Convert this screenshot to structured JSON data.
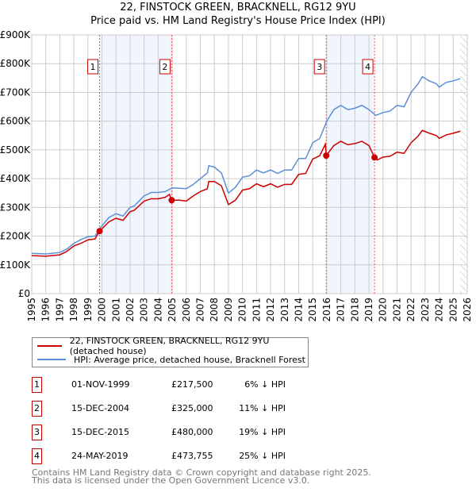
{
  "chart_data": {
    "type": "line",
    "title": "22, FINSTOCK GREEN, BRACKNELL, RG12 9YU",
    "subtitle": "Price paid vs. HM Land Registry's House Price Index (HPI)",
    "xlim": [
      1995,
      2026
    ],
    "ylim": [
      0,
      900000
    ],
    "y_ticks": [
      0,
      100000,
      200000,
      300000,
      400000,
      500000,
      600000,
      700000,
      800000,
      900000
    ],
    "y_tick_labels": [
      "£0",
      "£100K",
      "£200K",
      "£300K",
      "£400K",
      "£500K",
      "£600K",
      "£700K",
      "£800K",
      "£900K"
    ],
    "x_ticks": [
      1995,
      1996,
      1997,
      1998,
      1999,
      2000,
      2001,
      2002,
      2003,
      2004,
      2005,
      2006,
      2007,
      2008,
      2009,
      2010,
      2011,
      2012,
      2013,
      2014,
      2015,
      2016,
      2017,
      2018,
      2019,
      2020,
      2021,
      2022,
      2023,
      2024,
      2025,
      2026
    ],
    "grid": true,
    "legend_position": "below",
    "series": [
      {
        "name": "22, FINSTOCK GREEN, BRACKNELL, RG12 9YU (detached house)",
        "color": "#cc0000",
        "points": [
          [
            1995,
            132
          ],
          [
            1996,
            130
          ],
          [
            1997,
            135
          ],
          [
            1997.5,
            147
          ],
          [
            1998,
            166
          ],
          [
            1998.5,
            175
          ],
          [
            1999,
            187
          ],
          [
            1999.5,
            190
          ],
          [
            1999.83,
            217.5
          ],
          [
            2000.5,
            250
          ],
          [
            2001,
            262
          ],
          [
            2001.5,
            255
          ],
          [
            2002,
            285
          ],
          [
            2002.3,
            290
          ],
          [
            2003,
            322
          ],
          [
            2003.5,
            330
          ],
          [
            2004,
            330
          ],
          [
            2004.5,
            335
          ],
          [
            2004.8,
            345
          ],
          [
            2004.96,
            325
          ],
          [
            2005.5,
            325
          ],
          [
            2006,
            322
          ],
          [
            2006.5,
            340
          ],
          [
            2007,
            355
          ],
          [
            2007.5,
            365
          ],
          [
            2007.6,
            390
          ],
          [
            2008,
            390
          ],
          [
            2008.5,
            375
          ],
          [
            2009,
            310
          ],
          [
            2009.5,
            325
          ],
          [
            2010,
            360
          ],
          [
            2010.5,
            365
          ],
          [
            2011,
            382
          ],
          [
            2011.5,
            372
          ],
          [
            2012,
            382
          ],
          [
            2012.5,
            370
          ],
          [
            2013,
            380
          ],
          [
            2013.5,
            380
          ],
          [
            2014,
            415
          ],
          [
            2014.5,
            418
          ],
          [
            2015,
            468
          ],
          [
            2015.5,
            480
          ],
          [
            2015.9,
            520
          ],
          [
            2015.96,
            480
          ],
          [
            2016.5,
            515
          ],
          [
            2017,
            530
          ],
          [
            2017.5,
            518
          ],
          [
            2018,
            522
          ],
          [
            2018.5,
            530
          ],
          [
            2019,
            515
          ],
          [
            2019.4,
            473.755
          ],
          [
            2019.6,
            465
          ],
          [
            2020,
            475
          ],
          [
            2020.5,
            478
          ],
          [
            2021,
            492
          ],
          [
            2021.5,
            488
          ],
          [
            2022,
            525
          ],
          [
            2022.5,
            548
          ],
          [
            2022.8,
            568
          ],
          [
            2023.3,
            558
          ],
          [
            2023.8,
            550
          ],
          [
            2024,
            540
          ],
          [
            2024.5,
            552
          ],
          [
            2025,
            558
          ],
          [
            2025.5,
            565
          ]
        ]
      },
      {
        "name": "HPI: Average price, detached house, Bracknell Forest",
        "color": "#5b8fd6",
        "points": [
          [
            1995,
            140
          ],
          [
            1996,
            138
          ],
          [
            1997,
            143
          ],
          [
            1997.5,
            155
          ],
          [
            1998,
            175
          ],
          [
            1998.5,
            188
          ],
          [
            1999,
            198
          ],
          [
            1999.5,
            200
          ],
          [
            1999.9,
            230
          ],
          [
            2000.5,
            265
          ],
          [
            2001,
            278
          ],
          [
            2001.5,
            270
          ],
          [
            2002,
            300
          ],
          [
            2002.3,
            305
          ],
          [
            2003,
            340
          ],
          [
            2003.5,
            352
          ],
          [
            2004,
            352
          ],
          [
            2004.5,
            355
          ],
          [
            2005,
            368
          ],
          [
            2006,
            365
          ],
          [
            2006.5,
            380
          ],
          [
            2007,
            400
          ],
          [
            2007.5,
            420
          ],
          [
            2007.6,
            445
          ],
          [
            2008,
            440
          ],
          [
            2008.5,
            420
          ],
          [
            2009,
            350
          ],
          [
            2009.5,
            370
          ],
          [
            2010,
            405
          ],
          [
            2010.5,
            410
          ],
          [
            2011,
            430
          ],
          [
            2011.5,
            420
          ],
          [
            2012,
            430
          ],
          [
            2012.5,
            418
          ],
          [
            2013,
            430
          ],
          [
            2013.5,
            430
          ],
          [
            2014,
            470
          ],
          [
            2014.5,
            470
          ],
          [
            2015,
            525
          ],
          [
            2015.5,
            540
          ],
          [
            2016,
            600
          ],
          [
            2016.5,
            640
          ],
          [
            2017,
            655
          ],
          [
            2017.5,
            640
          ],
          [
            2018,
            645
          ],
          [
            2018.5,
            655
          ],
          [
            2019,
            640
          ],
          [
            2019.5,
            620
          ],
          [
            2020,
            630
          ],
          [
            2020.5,
            635
          ],
          [
            2021,
            655
          ],
          [
            2021.5,
            650
          ],
          [
            2022,
            700
          ],
          [
            2022.5,
            730
          ],
          [
            2022.8,
            755
          ],
          [
            2023.3,
            740
          ],
          [
            2023.8,
            730
          ],
          [
            2024,
            718
          ],
          [
            2024.5,
            735
          ],
          [
            2025,
            740
          ],
          [
            2025.5,
            748
          ]
        ]
      }
    ],
    "annotations": [
      {
        "label": "1",
        "x": 1999.83,
        "y": 217500
      },
      {
        "label": "2",
        "x": 2004.96,
        "y": 325000
      },
      {
        "label": "3",
        "x": 2015.96,
        "y": 480000
      },
      {
        "label": "4",
        "x": 2019.4,
        "y": 473755
      }
    ],
    "shaded_ranges": [
      [
        1999.83,
        2004.96
      ],
      [
        2015.96,
        2019.4
      ]
    ],
    "forecast_hatch_from": 2025.5
  },
  "transactions": [
    {
      "num": "1",
      "date": "01-NOV-1999",
      "price": "£217,500",
      "diff": "6% ↓ HPI"
    },
    {
      "num": "2",
      "date": "15-DEC-2004",
      "price": "£325,000",
      "diff": "11% ↓ HPI"
    },
    {
      "num": "3",
      "date": "15-DEC-2015",
      "price": "£480,000",
      "diff": "19% ↓ HPI"
    },
    {
      "num": "4",
      "date": "24-MAY-2019",
      "price": "£473,755",
      "diff": "25% ↓ HPI"
    }
  ],
  "footer": [
    "Contains HM Land Registry data © Crown copyright and database right 2025.",
    "This data is licensed under the Open Government Licence v3.0."
  ]
}
